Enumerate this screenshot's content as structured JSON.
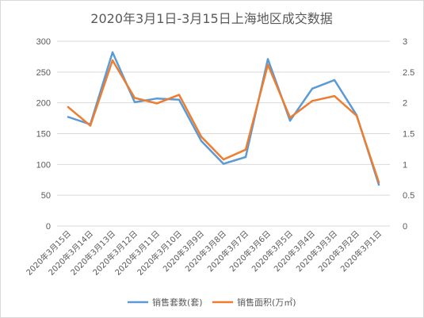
{
  "chart_data": {
    "type": "line",
    "title": "2020年3月1日-3月15日上海地区成交数据",
    "categories": [
      "2020年3月15日",
      "2020年3月14日",
      "2020年3月13日",
      "2020年3月12日",
      "2020年3月11日",
      "2020年3月10日",
      "2020年3月9日",
      "2020年3月8日",
      "2020年3月7日",
      "2020年3月6日",
      "2020年3月5日",
      "2020年3月4日",
      "2020年3月3日",
      "2020年3月2日",
      "2020年3月1日"
    ],
    "left_axis": {
      "ylim": [
        0,
        300
      ],
      "ticks": [
        "0",
        "50",
        "100",
        "150",
        "200",
        "250",
        "300"
      ]
    },
    "right_axis": {
      "ylim": [
        0,
        3
      ],
      "ticks": [
        "0",
        "0.5",
        "1",
        "1.5",
        "2",
        "2.5",
        "3"
      ]
    },
    "grid": true,
    "legend_position": "bottom",
    "series": [
      {
        "name": "销售套数(套)",
        "axis": "left",
        "color": "#5b9bd5",
        "values": [
          177,
          165,
          282,
          201,
          207,
          205,
          138,
          101,
          112,
          271,
          171,
          223,
          237,
          180,
          67
        ]
      },
      {
        "name": "销售面积(万㎡)",
        "axis": "right",
        "color": "#ed7d31",
        "values": [
          1.93,
          1.63,
          2.69,
          2.08,
          1.99,
          2.13,
          1.45,
          1.08,
          1.24,
          2.62,
          1.76,
          2.03,
          2.11,
          1.79,
          0.71
        ]
      }
    ]
  }
}
